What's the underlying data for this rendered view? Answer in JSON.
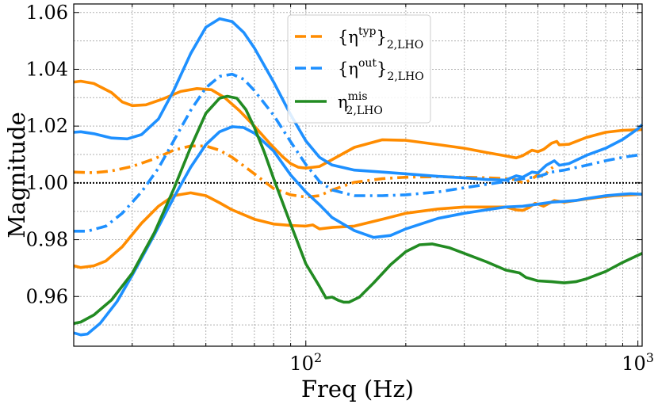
{
  "chart_data": {
    "type": "line",
    "xlabel": "Freq (Hz)",
    "ylabel": "Magnitude",
    "xscale": "log",
    "xlim": [
      20,
      1030
    ],
    "ylim": [
      0.9425,
      1.063
    ],
    "xticks": [
      {
        "value": 100,
        "base": "10",
        "exp": "2"
      },
      {
        "value": 1000,
        "base": "10",
        "exp": "3"
      }
    ],
    "yticks": [
      {
        "value": 0.96,
        "label": "0.96"
      },
      {
        "value": 0.98,
        "label": "0.98"
      },
      {
        "value": 1.0,
        "label": "1.00"
      },
      {
        "value": 1.02,
        "label": "1.02"
      },
      {
        "value": 1.04,
        "label": "1.04"
      },
      {
        "value": 1.06,
        "label": "1.06"
      }
    ],
    "grid": true,
    "reference_line": {
      "y": 1.0,
      "style": "dotted",
      "color": "#000000"
    },
    "legend": {
      "placement": "top-center",
      "entries": [
        {
          "base": "{η",
          "sup": "typ",
          "tail": "}",
          "sub": "2,LHO",
          "color": "#ff8c00",
          "dash": "dashed"
        },
        {
          "base": "{η",
          "sup": "out",
          "tail": "}",
          "sub": "2,LHO",
          "color": "#1e90ff",
          "dash": "dashed"
        },
        {
          "base": "η",
          "sup": "mis",
          "tail": "",
          "sub": "2,LHO",
          "color": "#228b22",
          "dash": "solid"
        }
      ]
    },
    "series": [
      {
        "color": "#ff8c00",
        "style": "solid",
        "points": [
          [
            20,
            1.0355
          ],
          [
            21,
            1.0358
          ],
          [
            23,
            1.035
          ],
          [
            26,
            1.0318
          ],
          [
            28,
            1.0285
          ],
          [
            30,
            1.0272
          ],
          [
            33,
            1.0275
          ],
          [
            37,
            1.0295
          ],
          [
            42,
            1.0322
          ],
          [
            47,
            1.0332
          ],
          [
            52,
            1.0328
          ],
          [
            57,
            1.03
          ],
          [
            63,
            1.0255
          ],
          [
            70,
            1.02
          ],
          [
            78,
            1.0138
          ],
          [
            85,
            1.0093
          ],
          [
            90,
            1.0068
          ],
          [
            95,
            1.0055
          ],
          [
            100,
            1.0052
          ],
          [
            110,
            1.0058
          ],
          [
            120,
            1.0082
          ],
          [
            140,
            1.0125
          ],
          [
            170,
            1.0152
          ],
          [
            200,
            1.015
          ],
          [
            250,
            1.0135
          ],
          [
            300,
            1.0122
          ],
          [
            350,
            1.0107
          ],
          [
            400,
            1.0095
          ],
          [
            430,
            1.0088
          ],
          [
            450,
            1.0096
          ],
          [
            480,
            1.0115
          ],
          [
            500,
            1.011
          ],
          [
            520,
            1.0118
          ],
          [
            550,
            1.014
          ],
          [
            570,
            1.0146
          ],
          [
            580,
            1.0134
          ],
          [
            620,
            1.0136
          ],
          [
            700,
            1.016
          ],
          [
            800,
            1.0178
          ],
          [
            900,
            1.0185
          ],
          [
            1000,
            1.0187
          ],
          [
            1030,
            1.0188
          ]
        ]
      },
      {
        "color": "#ff8c00",
        "style": "dashdot",
        "points": [
          [
            20,
            1.0038
          ],
          [
            23,
            1.0036
          ],
          [
            26,
            1.0042
          ],
          [
            30,
            1.0058
          ],
          [
            35,
            1.0085
          ],
          [
            40,
            1.0115
          ],
          [
            45,
            1.013
          ],
          [
            50,
            1.013
          ],
          [
            55,
            1.0115
          ],
          [
            60,
            1.009
          ],
          [
            65,
            1.006
          ],
          [
            70,
            1.0032
          ],
          [
            75,
            1.0005
          ],
          [
            80,
            0.998
          ],
          [
            90,
            0.9958
          ],
          [
            100,
            0.995
          ],
          [
            110,
            0.9955
          ],
          [
            120,
            0.9975
          ],
          [
            140,
            1.0002
          ],
          [
            170,
            1.0015
          ],
          [
            200,
            1.002
          ],
          [
            250,
            1.0022
          ],
          [
            300,
            1.002
          ],
          [
            350,
            1.0018
          ],
          [
            400,
            1.0015
          ],
          [
            430,
            1.0012
          ],
          [
            450,
            1.0
          ],
          [
            470,
            1.0008
          ],
          [
            500,
            1.0028
          ],
          [
            520,
            1.0022
          ],
          [
            540,
            1.0045
          ],
          [
            555,
            1.0055
          ]
        ]
      },
      {
        "color": "#ff8c00",
        "style": "solid",
        "points": [
          [
            20,
            0.9708
          ],
          [
            21,
            0.9702
          ],
          [
            23,
            0.9708
          ],
          [
            25,
            0.9725
          ],
          [
            28,
            0.9775
          ],
          [
            32,
            0.9858
          ],
          [
            36,
            0.9918
          ],
          [
            40,
            0.9955
          ],
          [
            45,
            0.9965
          ],
          [
            50,
            0.9955
          ],
          [
            55,
            0.993
          ],
          [
            60,
            0.9905
          ],
          [
            70,
            0.9872
          ],
          [
            80,
            0.9855
          ],
          [
            90,
            0.985
          ],
          [
            100,
            0.9848
          ],
          [
            105,
            0.9852
          ],
          [
            110,
            0.9838
          ],
          [
            120,
            0.9843
          ],
          [
            140,
            0.9848
          ],
          [
            170,
            0.9872
          ],
          [
            200,
            0.9893
          ],
          [
            250,
            0.9908
          ],
          [
            300,
            0.9915
          ],
          [
            350,
            0.9915
          ],
          [
            400,
            0.9915
          ],
          [
            430,
            0.9905
          ],
          [
            450,
            0.9903
          ],
          [
            470,
            0.9913
          ],
          [
            490,
            0.9928
          ],
          [
            500,
            0.9925
          ],
          [
            520,
            0.9918
          ],
          [
            560,
            0.9938
          ],
          [
            600,
            0.9932
          ],
          [
            650,
            0.9938
          ],
          [
            750,
            0.9948
          ],
          [
            850,
            0.9955
          ],
          [
            950,
            0.9958
          ],
          [
            1030,
            0.996
          ]
        ]
      },
      {
        "color": "#1e90ff",
        "style": "solid",
        "points": [
          [
            20,
            1.0178
          ],
          [
            21,
            1.018
          ],
          [
            23,
            1.0173
          ],
          [
            26,
            1.0158
          ],
          [
            29,
            1.0155
          ],
          [
            32,
            1.017
          ],
          [
            36,
            1.0225
          ],
          [
            40,
            1.0325
          ],
          [
            45,
            1.0455
          ],
          [
            50,
            1.0548
          ],
          [
            55,
            1.0578
          ],
          [
            60,
            1.0568
          ],
          [
            65,
            1.053
          ],
          [
            70,
            1.0475
          ],
          [
            80,
            1.0355
          ],
          [
            90,
            1.024
          ],
          [
            100,
            1.0148
          ],
          [
            110,
            1.009
          ],
          [
            120,
            1.0063
          ],
          [
            140,
            1.0045
          ],
          [
            170,
            1.0038
          ],
          [
            200,
            1.0032
          ],
          [
            250,
            1.0023
          ],
          [
            300,
            1.0018
          ],
          [
            350,
            1.0012
          ],
          [
            400,
            1.001
          ],
          [
            430,
            1.0025
          ],
          [
            450,
            1.002
          ],
          [
            480,
            1.0038
          ],
          [
            500,
            1.0035
          ],
          [
            530,
            1.0062
          ],
          [
            560,
            1.0078
          ],
          [
            580,
            1.0062
          ],
          [
            620,
            1.0068
          ],
          [
            700,
            1.0097
          ],
          [
            800,
            1.0122
          ],
          [
            900,
            1.0153
          ],
          [
            1000,
            1.019
          ],
          [
            1030,
            1.0205
          ]
        ]
      },
      {
        "color": "#1e90ff",
        "style": "dashdot",
        "points": [
          [
            20,
            0.983
          ],
          [
            22,
            0.983
          ],
          [
            25,
            0.9848
          ],
          [
            28,
            0.9893
          ],
          [
            32,
            0.9968
          ],
          [
            36,
            1.0052
          ],
          [
            40,
            1.0148
          ],
          [
            45,
            1.0255
          ],
          [
            50,
            1.0335
          ],
          [
            55,
            1.0375
          ],
          [
            60,
            1.0383
          ],
          [
            65,
            1.0365
          ],
          [
            70,
            1.0325
          ],
          [
            80,
            1.0238
          ],
          [
            90,
            1.0145
          ],
          [
            100,
            1.0065
          ],
          [
            110,
            1.0005
          ],
          [
            120,
            0.9975
          ],
          [
            140,
            0.9955
          ],
          [
            170,
            0.9955
          ],
          [
            200,
            0.9958
          ],
          [
            250,
            0.9968
          ],
          [
            300,
            0.9983
          ],
          [
            350,
            0.9995
          ],
          [
            400,
            1.0005
          ],
          [
            450,
            1.0015
          ],
          [
            500,
            1.0022
          ],
          [
            550,
            1.0038
          ],
          [
            600,
            1.0045
          ],
          [
            700,
            1.0062
          ],
          [
            800,
            1.0078
          ],
          [
            900,
            1.009
          ],
          [
            1000,
            1.0098
          ],
          [
            1030,
            1.0102
          ]
        ]
      },
      {
        "color": "#1e90ff",
        "style": "solid",
        "points": [
          [
            20,
            0.9472
          ],
          [
            21,
            0.9465
          ],
          [
            22,
            0.9468
          ],
          [
            24,
            0.9505
          ],
          [
            27,
            0.9582
          ],
          [
            30,
            0.9675
          ],
          [
            35,
            0.9818
          ],
          [
            40,
            0.9948
          ],
          [
            45,
            1.0055
          ],
          [
            50,
            1.0135
          ],
          [
            55,
            1.018
          ],
          [
            60,
            1.0198
          ],
          [
            65,
            1.0195
          ],
          [
            70,
            1.0175
          ],
          [
            80,
            1.0112
          ],
          [
            90,
            1.0028
          ],
          [
            100,
            0.9968
          ],
          [
            110,
            0.9923
          ],
          [
            120,
            0.9878
          ],
          [
            140,
            0.9832
          ],
          [
            160,
            0.9808
          ],
          [
            180,
            0.9815
          ],
          [
            200,
            0.9838
          ],
          [
            250,
            0.9875
          ],
          [
            300,
            0.9893
          ],
          [
            350,
            0.9905
          ],
          [
            400,
            0.9915
          ],
          [
            450,
            0.9918
          ],
          [
            500,
            0.9925
          ],
          [
            550,
            0.9932
          ],
          [
            600,
            0.9935
          ],
          [
            650,
            0.9938
          ],
          [
            700,
            0.9945
          ],
          [
            800,
            0.9955
          ],
          [
            900,
            0.996
          ],
          [
            950,
            0.9962
          ],
          [
            1030,
            0.996
          ]
        ]
      },
      {
        "color": "#228b22",
        "style": "solid",
        "points": [
          [
            20,
            0.9505
          ],
          [
            21,
            0.951
          ],
          [
            23,
            0.9535
          ],
          [
            26,
            0.9588
          ],
          [
            30,
            0.9682
          ],
          [
            35,
            0.9825
          ],
          [
            40,
            0.9978
          ],
          [
            45,
            1.0125
          ],
          [
            50,
            1.0245
          ],
          [
            55,
            1.0298
          ],
          [
            58,
            1.0305
          ],
          [
            62,
            1.0298
          ],
          [
            66,
            1.0258
          ],
          [
            70,
            1.0195
          ],
          [
            75,
            1.0108
          ],
          [
            80,
            1.0015
          ],
          [
            90,
            0.9855
          ],
          [
            100,
            0.9715
          ],
          [
            110,
            0.9635
          ],
          [
            115,
            0.9595
          ],
          [
            120,
            0.9598
          ],
          [
            125,
            0.9587
          ],
          [
            130,
            0.958
          ],
          [
            135,
            0.958
          ],
          [
            145,
            0.9598
          ],
          [
            160,
            0.9648
          ],
          [
            180,
            0.9712
          ],
          [
            200,
            0.9758
          ],
          [
            220,
            0.9782
          ],
          [
            240,
            0.9785
          ],
          [
            270,
            0.9772
          ],
          [
            300,
            0.9752
          ],
          [
            350,
            0.9722
          ],
          [
            400,
            0.9693
          ],
          [
            440,
            0.9683
          ],
          [
            460,
            0.9667
          ],
          [
            500,
            0.9655
          ],
          [
            550,
            0.9652
          ],
          [
            600,
            0.9648
          ],
          [
            650,
            0.9652
          ],
          [
            700,
            0.9662
          ],
          [
            800,
            0.9688
          ],
          [
            900,
            0.972
          ],
          [
            1000,
            0.9745
          ],
          [
            1030,
            0.9752
          ]
        ]
      }
    ]
  }
}
